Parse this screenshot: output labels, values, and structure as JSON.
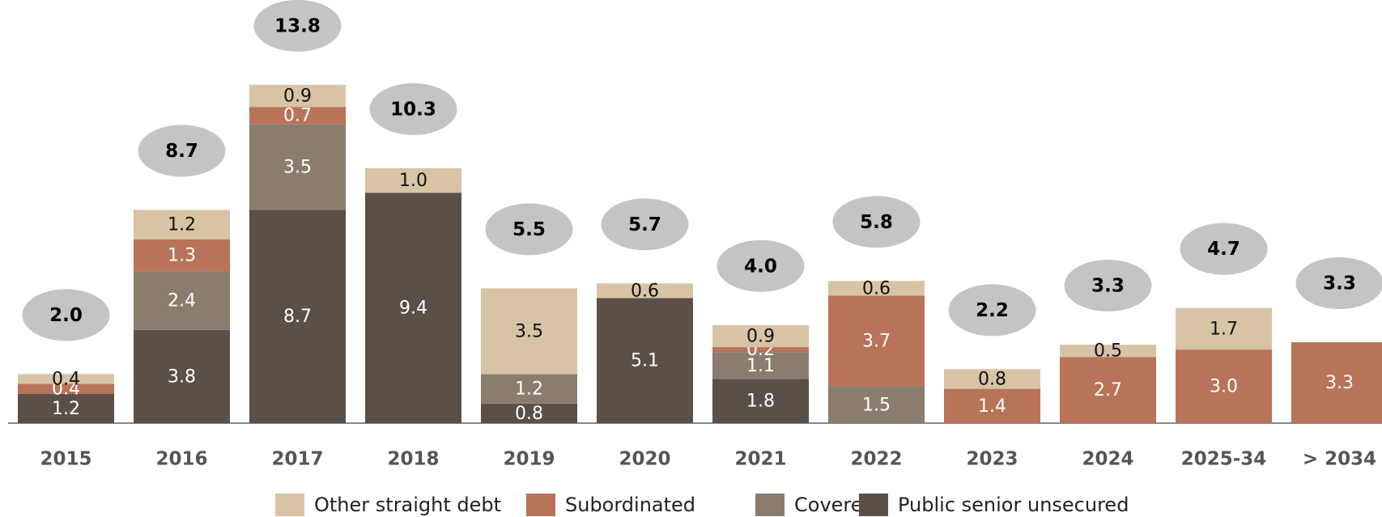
{
  "chart_data": {
    "type": "stacked_bar",
    "categories": [
      "2015",
      "2016",
      "2017",
      "2018",
      "2019",
      "2020",
      "2021",
      "2022",
      "2023",
      "2024",
      "2025-34",
      "> 2034"
    ],
    "series": [
      {
        "name": "Other straight debt",
        "color": "#d8c3a5",
        "values": [
          0.4,
          1.2,
          0.9,
          1.0,
          3.5,
          0.6,
          0.9,
          0.6,
          0.8,
          0.5,
          1.7,
          null
        ],
        "value_labels": [
          "0.4",
          "1.2",
          "0.9",
          "1.0",
          "3.5",
          "0.6",
          "0.9",
          "0.6",
          "0.8",
          "0.5",
          "1.7",
          null
        ]
      },
      {
        "name": "Subordinated",
        "color": "#b87359",
        "values": [
          0.4,
          1.3,
          0.7,
          null,
          null,
          null,
          0.2,
          3.7,
          1.4,
          2.7,
          3.0,
          3.3
        ],
        "value_labels": [
          "0.4",
          "1.3",
          "0.7",
          null,
          null,
          null,
          "0.2",
          "3.7",
          "1.4",
          "2.7",
          "3.0",
          "3.3"
        ]
      },
      {
        "name": "Covered",
        "color": "#8a7d6f",
        "values": [
          null,
          2.4,
          3.5,
          null,
          1.2,
          null,
          1.1,
          1.5,
          null,
          null,
          null,
          null
        ],
        "value_labels": [
          null,
          "2.4",
          "3.5",
          null,
          "1.2",
          null,
          "1.1",
          "1.5",
          null,
          null,
          null,
          null
        ]
      },
      {
        "name": "Public senior unsecured",
        "color": "#5a5047",
        "values": [
          1.2,
          3.8,
          8.7,
          9.4,
          0.8,
          5.1,
          1.8,
          null,
          null,
          null,
          null,
          null
        ],
        "value_labels": [
          "1.2",
          "3.8",
          "8.7",
          "9.4",
          "0.8",
          "5.1",
          "1.8",
          null,
          null,
          null,
          null,
          null
        ]
      }
    ],
    "totals": {
      "values": [
        2.0,
        8.7,
        13.8,
        10.3,
        5.5,
        5.7,
        4.0,
        5.8,
        2.2,
        3.3,
        4.7,
        3.3
      ],
      "value_labels": [
        "2.0",
        "8.7",
        "13.8",
        "10.3",
        "5.5",
        "5.7",
        "4.0",
        "5.8",
        "2.2",
        "3.3",
        "4.7",
        "3.3"
      ]
    }
  }
}
